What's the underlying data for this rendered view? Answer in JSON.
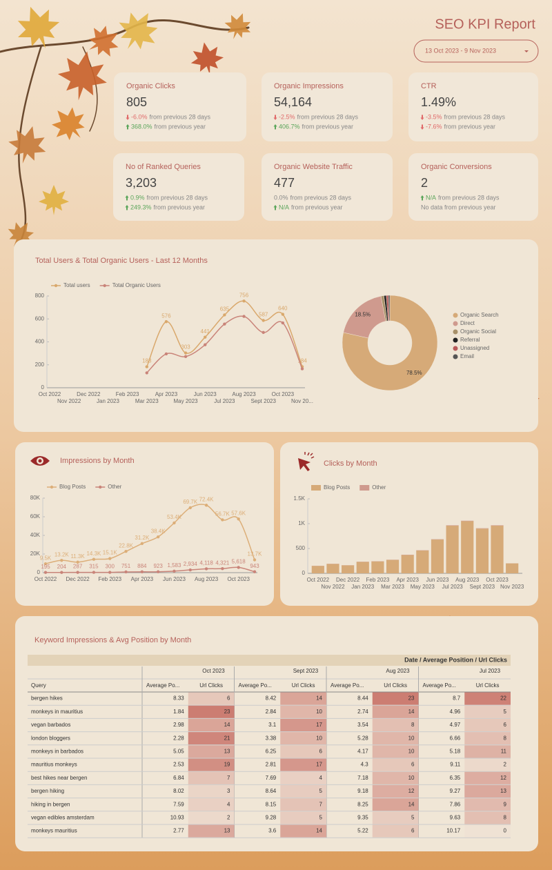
{
  "header": {
    "title": "SEO KPI Report",
    "date_range": "13 Oct 2023 - 9 Nov 2023"
  },
  "kpis": [
    {
      "title": "Organic Clicks",
      "value": "805",
      "changes": [
        {
          "value": "-6.0%",
          "note": "from previous 28 days",
          "trend": "down"
        },
        {
          "value": "368.0%",
          "note": "from previous year",
          "trend": "up"
        }
      ]
    },
    {
      "title": "Organic Impressions",
      "value": "54,164",
      "changes": [
        {
          "value": "-2.5%",
          "note": "from previous 28 days",
          "trend": "down"
        },
        {
          "value": "406.7%",
          "note": "from previous year",
          "trend": "up"
        }
      ]
    },
    {
      "title": "CTR",
      "value": "1.49%",
      "changes": [
        {
          "value": "-3.5%",
          "note": "from previous 28 days",
          "trend": "down"
        },
        {
          "value": "-7.6%",
          "note": "from previous year",
          "trend": "down"
        }
      ]
    },
    {
      "title": "No of Ranked Queries",
      "value": "3,203",
      "changes": [
        {
          "value": "0.9%",
          "note": "from previous 28 days",
          "trend": "up"
        },
        {
          "value": "249.3%",
          "note": "from previous year",
          "trend": "up"
        }
      ]
    },
    {
      "title": "Organic Website Traffic",
      "value": "477",
      "changes": [
        {
          "value": "0.0%",
          "note": "from previous 28 days",
          "trend": "flat"
        },
        {
          "value": "N/A",
          "note": "from previous year",
          "trend": "up"
        }
      ]
    },
    {
      "title": "Organic Conversions",
      "value": "2",
      "changes": [
        {
          "value": "N/A",
          "note": "from previous 28 days",
          "trend": "up"
        },
        {
          "note": "No data from previous year",
          "trend": "flat"
        }
      ]
    }
  ],
  "chart_data": [
    {
      "type": "line",
      "title": "Total Users & Total Organic Users - Last 12 Months",
      "categories": [
        "Oct 2022",
        "Nov 2022",
        "Dec 2022",
        "Jan 2023",
        "Feb 2023",
        "Mar 2023",
        "Apr 2023",
        "May 2023",
        "Jun 2023",
        "Jul 2023",
        "Aug 2023",
        "Sept 2023",
        "Oct 2023",
        "Nov 20..."
      ],
      "series": [
        {
          "name": "Total users",
          "color": "#d9a86c",
          "data_labels": true,
          "values": [
            null,
            null,
            null,
            null,
            null,
            183,
            576,
            303,
            441,
            635,
            756,
            587,
            640,
            184
          ]
        },
        {
          "name": "Total Organic Users",
          "color": "#c98479",
          "data_labels": false,
          "values": [
            null,
            null,
            null,
            null,
            null,
            130,
            295,
            272,
            375,
            555,
            622,
            482,
            565,
            165
          ]
        }
      ],
      "ylim": [
        0,
        800
      ],
      "yticks": [
        0,
        200,
        400,
        600,
        800
      ],
      "grid": false
    },
    {
      "type": "pie",
      "categories": [
        "Organic Search",
        "Direct",
        "Organic Social",
        "Referral",
        "Unassigned",
        "Email"
      ],
      "values": [
        78.5,
        18.5,
        1.0,
        0.8,
        0.7,
        0.5
      ],
      "value_labels": [
        "78.5%",
        "18.5%",
        null,
        null,
        null,
        null
      ],
      "colors": [
        "#d6aa78",
        "#cf9a8e",
        "#a8916a",
        "#222222",
        "#b85a5a",
        "#555555"
      ]
    },
    {
      "type": "line",
      "title": "Impressions by Month",
      "categories": [
        "Oct 2022",
        null,
        "Dec 2022",
        null,
        "Feb 2023",
        null,
        "Apr 2023",
        null,
        "Jun 2023",
        null,
        "Aug 2023",
        null,
        "Oct 2023",
        null
      ],
      "series": [
        {
          "name": "Blog Posts",
          "color": "#dcae78",
          "data_labels": true,
          "values": [
            9500,
            13200,
            11300,
            14300,
            15100,
            22800,
            31200,
            38400,
            53400,
            69700,
            72400,
            56700,
            57600,
            13700
          ],
          "value_labels": [
            "9.5K",
            "13.2K",
            "11.3K",
            "14.3K",
            "15.1K",
            "22.8K",
            "31.2K",
            "38.4K",
            "53.4K",
            "69.7K",
            "72.4K",
            "56.7K",
            "57.6K",
            "13.7K"
          ]
        },
        {
          "name": "Other",
          "color": "#c98479",
          "data_labels": true,
          "values": [
            195,
            204,
            287,
            315,
            300,
            751,
            884,
            923,
            1583,
            2934,
            4118,
            4321,
            5618,
            943
          ],
          "value_labels": [
            "195",
            "204",
            "287",
            "315",
            "300",
            "751",
            "884",
            "923",
            "1,583",
            "2,934",
            "4,118",
            "4,321",
            "5,618",
            "943"
          ]
        }
      ],
      "ylim": [
        0,
        80000
      ],
      "yticks": [
        0,
        {
          "value": 20000,
          "label": "20K"
        },
        {
          "value": 40000,
          "label": "40K"
        },
        {
          "value": 60000,
          "label": "60K"
        },
        {
          "value": 80000,
          "label": "80K"
        }
      ],
      "grid": false
    },
    {
      "type": "bar",
      "stacked": true,
      "title": "Clicks by Month",
      "categories": [
        "Oct 2022",
        "Nov 2022",
        "Dec 2022",
        "Jan 2023",
        "Feb 2023",
        "Mar 2023",
        "Apr 2023",
        "May 2023",
        "Jun 2023",
        "Jul 2023",
        "Aug 2023",
        "Sept 2023",
        "Oct 2023",
        "Nov 2023"
      ],
      "series": [
        {
          "name": "Blog Posts",
          "color": "#d6aa78",
          "values": [
            150,
            190,
            160,
            230,
            240,
            270,
            370,
            460,
            680,
            960,
            1050,
            900,
            960,
            200
          ]
        },
        {
          "name": "Other",
          "color": "#cf9a8e",
          "values": [
            3,
            3,
            3,
            4,
            4,
            4,
            5,
            5,
            6,
            8,
            9,
            8,
            8,
            2
          ]
        }
      ],
      "ylim": [
        0,
        1500
      ],
      "yticks": [
        0,
        500,
        {
          "value": 1000,
          "label": "1K"
        },
        {
          "value": 1500,
          "label": "1.5K"
        }
      ],
      "grid": false
    }
  ],
  "table": {
    "title": "Keyword Impressions & Avg Position by Month",
    "header": "Date / Average Position / Url Clicks",
    "row_header": "Query",
    "months": [
      "Oct 2023",
      "Sept 2023",
      "Aug 2023",
      "Jul 2023"
    ],
    "columns": [
      "Average Po...",
      "Url Clicks"
    ],
    "rows": [
      {
        "query": "bergen hikes",
        "cells": [
          8.33,
          6,
          8.42,
          14,
          8.44,
          23,
          8.7,
          22
        ]
      },
      {
        "query": "monkeys in mauritius",
        "cells": [
          1.84,
          23,
          2.84,
          10,
          2.74,
          14,
          4.96,
          5
        ]
      },
      {
        "query": "vegan barbados",
        "cells": [
          2.98,
          14,
          3.1,
          17,
          3.54,
          8,
          4.97,
          6
        ]
      },
      {
        "query": "london bloggers",
        "cells": [
          2.28,
          21,
          3.38,
          10,
          5.28,
          10,
          6.66,
          8
        ]
      },
      {
        "query": "monkeys in barbados",
        "cells": [
          5.05,
          13,
          6.25,
          6,
          4.17,
          10,
          5.18,
          11
        ]
      },
      {
        "query": "mauritius monkeys",
        "cells": [
          2.53,
          19,
          2.81,
          17,
          4.3,
          6,
          9.11,
          2
        ]
      },
      {
        "query": "best hikes near bergen",
        "cells": [
          6.84,
          7,
          7.69,
          4,
          7.18,
          10,
          6.35,
          12
        ]
      },
      {
        "query": "bergen hiking",
        "cells": [
          8.02,
          3,
          8.64,
          5,
          9.18,
          12,
          9.27,
          13
        ]
      },
      {
        "query": "hiking in bergen",
        "cells": [
          7.59,
          4,
          8.15,
          7,
          8.25,
          14,
          7.86,
          9
        ]
      },
      {
        "query": "vegan edibles amsterdam",
        "cells": [
          10.93,
          2,
          9.28,
          5,
          9.35,
          5,
          9.63,
          8
        ]
      },
      {
        "query": "monkeys mauritius",
        "cells": [
          2.77,
          13,
          3.6,
          14,
          5.22,
          6,
          10.17,
          0
        ]
      }
    ]
  }
}
